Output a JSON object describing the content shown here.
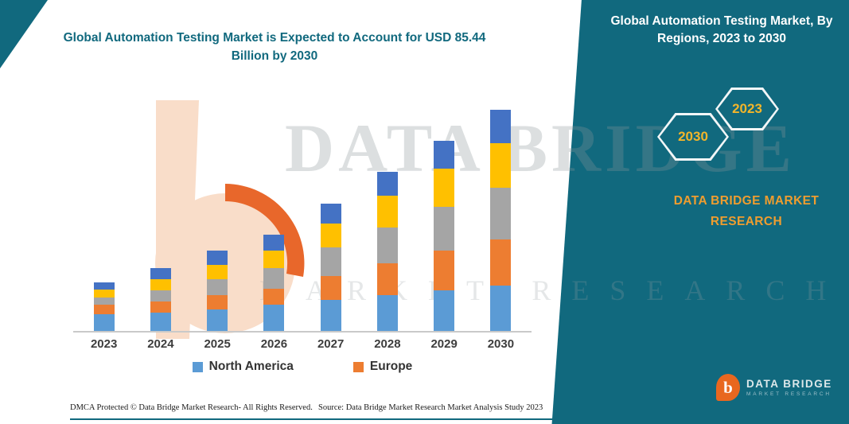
{
  "header": {
    "left_title": "Global Automation Testing Market is Expected to Account for USD 85.44 Billion by 2030",
    "banner_title": "Global Automation Testing Market, By Regions, 2023 to 2030",
    "brand_text": "DATA BRIDGE MARKET RESEARCH"
  },
  "hexagons": {
    "start_year": "2023",
    "end_year": "2030"
  },
  "watermark": {
    "line1": "DATA BRIDGE",
    "line2": "MARKET RESEARCH"
  },
  "footer": {
    "dmca": "DMCA Protected © Data Bridge Market Research-  All Rights Reserved.",
    "source": "Source: Data Bridge Market Research  Market Analysis Study 2023"
  },
  "logo": {
    "icon": "b",
    "name": "DATA BRIDGE",
    "sub": "MARKET RESEARCH"
  },
  "colors": {
    "teal": "#11697e",
    "accent_yellow": "#f2b52a",
    "brand_orange": "#ef9d2f",
    "logo_orange": "#e8671f"
  },
  "chart_data": {
    "type": "bar",
    "stacked": true,
    "title": "Global Automation Testing Market is Expected to Account for USD 85.44 Billion by 2030",
    "xlabel": "",
    "ylabel": "",
    "value_axis_visible": false,
    "grid": false,
    "units": "relative height (no y-axis shown in figure)",
    "categories": [
      "2023",
      "2024",
      "2025",
      "2026",
      "2027",
      "2028",
      "2029",
      "2030"
    ],
    "series": [
      {
        "key": "north-america",
        "name": "North America",
        "color": "#5b9bd5",
        "values": [
          22,
          24,
          28,
          34,
          40,
          46,
          52,
          58
        ]
      },
      {
        "key": "europe",
        "name": "Europe",
        "color": "#ed7d31",
        "values": [
          12,
          14,
          18,
          20,
          30,
          40,
          50,
          58
        ]
      },
      {
        "key": "region-3-gray",
        "name": "(unlabeled gray region)",
        "color": "#a5a5a5",
        "values": [
          9,
          14,
          20,
          26,
          36,
          45,
          55,
          65
        ]
      },
      {
        "key": "region-4-yellow",
        "name": "(unlabeled yellow region)",
        "color": "#ffc000",
        "values": [
          10,
          14,
          18,
          22,
          30,
          40,
          48,
          56
        ]
      },
      {
        "key": "region-5-blue",
        "name": "(unlabeled blue region)",
        "color": "#4472c4",
        "values": [
          9,
          14,
          18,
          20,
          25,
          30,
          35,
          42
        ]
      }
    ],
    "legend": [
      "North America",
      "Europe"
    ],
    "legend_position": "bottom"
  }
}
